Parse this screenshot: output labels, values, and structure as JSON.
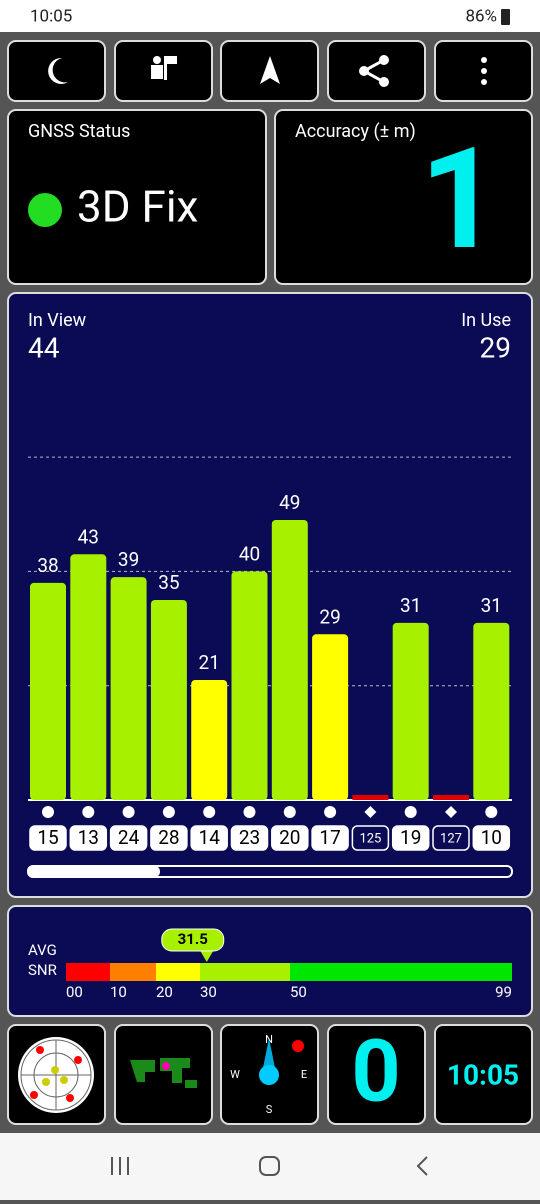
{
  "status_bar": {
    "time": "10:05",
    "battery": "86%"
  },
  "gnss_status": {
    "title": "GNSS Status",
    "fix": "3D Fix"
  },
  "accuracy": {
    "title": "Accuracy (± m)",
    "value": 1
  },
  "satellites": {
    "in_view": {
      "label": "In View",
      "value": 44
    },
    "in_use": {
      "label": "In Use",
      "value": 29
    },
    "ylim": [
      0,
      70
    ],
    "grid": [
      20,
      40,
      60
    ],
    "snr": [
      38,
      43,
      39,
      35,
      21,
      40,
      49,
      29,
      0,
      31,
      0,
      31
    ],
    "colors": [
      "#a6f000",
      "#a6f000",
      "#a6f000",
      "#a6f000",
      "#ffff00",
      "#a6f000",
      "#a6f000",
      "#ffff00",
      "#e00000",
      "#a6f000",
      "#e00000",
      "#a6f000"
    ],
    "prn": [
      "15",
      "13",
      "24",
      "28",
      "14",
      "23",
      "20",
      "17",
      "125",
      "19",
      "127",
      "10"
    ],
    "shape": [
      "circle",
      "circle",
      "circle",
      "circle",
      "circle",
      "circle",
      "circle",
      "circle",
      "diamond",
      "circle",
      "diamond",
      "circle"
    ]
  },
  "snr_scale": {
    "labels": [
      "AVG",
      "SNR"
    ],
    "avg": 31.5,
    "ticks": [
      {
        "value": 0,
        "label": "00"
      },
      10,
      20,
      30,
      50,
      99
    ],
    "colors": [
      "#ff0000",
      "#ff8000",
      "#ffff00",
      "#a6f000",
      "#00e600"
    ]
  },
  "tiles": {
    "compass": [
      "N",
      "E",
      "S",
      "W"
    ],
    "count": 0,
    "clock": "10:05"
  }
}
